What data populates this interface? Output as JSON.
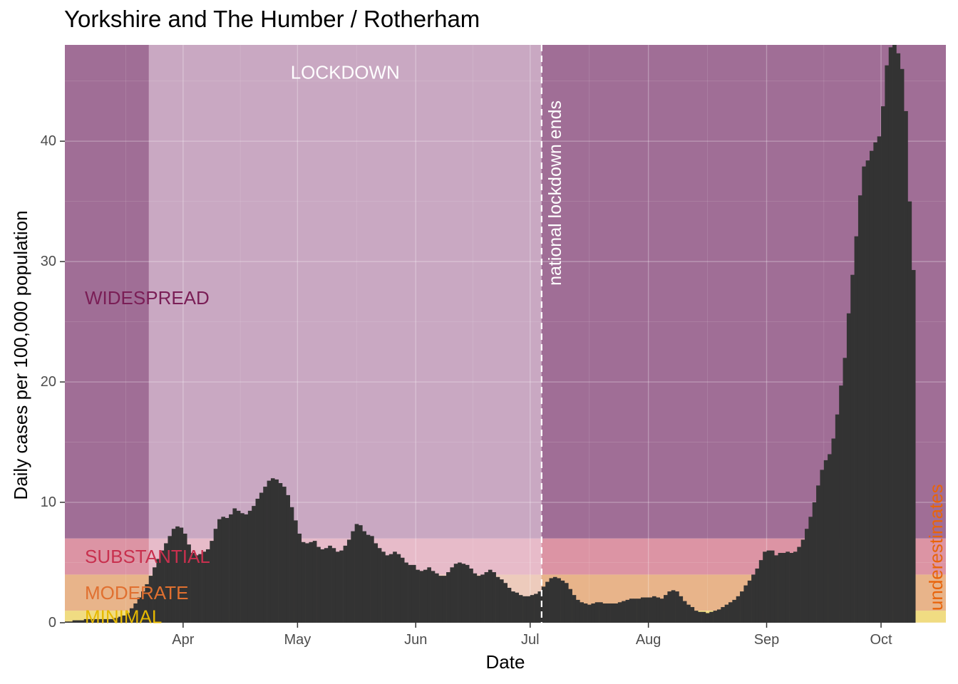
{
  "chart_data": {
    "type": "bar",
    "title": "Yorkshire and The Humber / Rotherham",
    "xlabel": "Date",
    "ylabel": "Daily cases per 100,000 population",
    "ylim": [
      0,
      48
    ],
    "yticks": [
      0,
      10,
      20,
      30,
      40
    ],
    "x_range": [
      "2020-03-01",
      "2020-10-18"
    ],
    "xticks": [
      {
        "date": "2020-04-01",
        "label": "Apr"
      },
      {
        "date": "2020-05-01",
        "label": "May"
      },
      {
        "date": "2020-06-01",
        "label": "Jun"
      },
      {
        "date": "2020-07-01",
        "label": "Jul"
      },
      {
        "date": "2020-08-01",
        "label": "Aug"
      },
      {
        "date": "2020-09-01",
        "label": "Sep"
      },
      {
        "date": "2020-10-01",
        "label": "Oct"
      }
    ],
    "grid": true,
    "bar_color": "#333333",
    "bands": [
      {
        "label": "MINIMAL",
        "from": 0,
        "to": 1,
        "color": "#f0dc82",
        "text_color": "#e6b800"
      },
      {
        "label": "MODERATE",
        "from": 1,
        "to": 4,
        "color": "#e8b48a",
        "text_color": "#e07030"
      },
      {
        "label": "SUBSTANTIAL",
        "from": 4,
        "to": 7,
        "color": "#dc94a4",
        "text_color": "#c8304e"
      },
      {
        "label": "WIDESPREAD",
        "from": 7,
        "to": 48,
        "color": "#a06e96",
        "text_color": "#7a1e56"
      }
    ],
    "lockdown": {
      "label": "LOCKDOWN",
      "start": "2020-03-23",
      "end": "2020-07-04",
      "color": "#f2e2ee"
    },
    "vline": {
      "date": "2020-07-04",
      "label": "national lockdown ends"
    },
    "underestimate_label": "underestimates",
    "series": [
      {
        "start_date": "2020-03-01",
        "values": [
          0.1,
          0.1,
          0.2,
          0.2,
          0.2,
          0.3,
          0.3,
          0.3,
          0.3,
          0.3,
          0.3,
          0.3,
          0.3,
          0.4,
          0.5,
          0.6,
          0.8,
          1.2,
          1.6,
          2.1,
          2.6,
          3.2,
          3.9,
          4.6,
          5.3,
          6.0,
          6.6,
          7.2,
          7.8,
          8.0,
          7.9,
          7.4,
          6.5,
          5.8,
          5.6,
          5.7,
          5.9,
          6.1,
          6.8,
          7.8,
          8.6,
          8.8,
          8.7,
          9.0,
          9.5,
          9.3,
          9.1,
          9.0,
          9.3,
          9.7,
          10.3,
          10.8,
          11.3,
          11.8,
          12.0,
          11.9,
          11.6,
          11.3,
          10.6,
          9.6,
          8.5,
          7.4,
          6.7,
          6.6,
          6.7,
          6.8,
          6.3,
          6.1,
          6.2,
          6.4,
          6.2,
          5.9,
          6.0,
          6.4,
          6.9,
          7.6,
          8.2,
          8.1,
          7.6,
          7.3,
          7.2,
          6.6,
          6.2,
          5.9,
          5.6,
          5.7,
          5.9,
          5.7,
          5.4,
          5.0,
          4.8,
          4.8,
          4.4,
          4.3,
          4.4,
          4.6,
          4.3,
          4.1,
          3.9,
          3.9,
          4.2,
          4.6,
          4.9,
          5.0,
          4.9,
          4.8,
          4.5,
          4.1,
          3.9,
          4.0,
          4.2,
          4.4,
          4.2,
          3.8,
          3.6,
          3.3,
          2.9,
          2.6,
          2.5,
          2.3,
          2.2,
          2.2,
          2.3,
          2.4,
          2.6,
          3.0,
          3.4,
          3.7,
          3.8,
          3.7,
          3.5,
          3.3,
          2.8,
          2.3,
          1.9,
          1.7,
          1.6,
          1.5,
          1.6,
          1.7,
          1.7,
          1.6,
          1.6,
          1.6,
          1.6,
          1.7,
          1.8,
          1.9,
          2.0,
          2.0,
          2.0,
          2.1,
          2.1,
          2.1,
          2.2,
          2.1,
          2.0,
          2.3,
          2.6,
          2.7,
          2.6,
          2.2,
          1.8,
          1.5,
          1.3,
          1.0,
          0.9,
          0.9,
          0.8,
          0.9,
          1.0,
          1.1,
          1.3,
          1.5,
          1.7,
          1.9,
          2.2,
          2.6,
          3.1,
          3.5,
          4.0,
          4.5,
          5.2,
          5.9,
          6.0,
          6.0,
          5.6,
          5.8,
          5.8,
          5.9,
          5.8,
          5.9,
          6.3,
          6.9,
          7.8,
          8.8,
          10.0,
          11.4,
          12.7,
          13.5,
          14.0,
          15.3,
          17.3,
          19.7,
          22.0,
          25.7,
          28.9,
          32.1,
          35.5,
          37.9,
          38.4,
          39.2,
          39.9,
          40.4,
          42.9,
          46.3,
          47.8,
          48.0,
          47.3,
          46.0,
          42.5,
          35.0,
          29.3
        ]
      }
    ]
  }
}
